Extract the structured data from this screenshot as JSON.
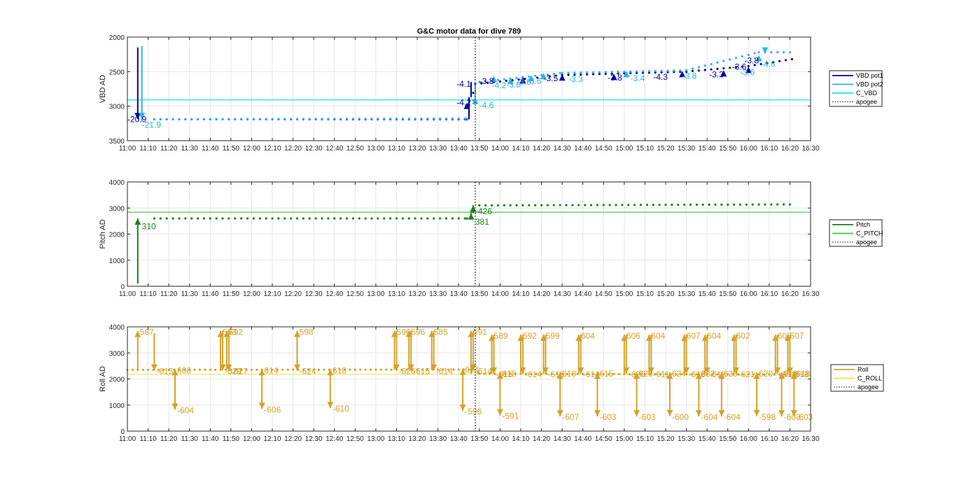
{
  "title": "G&C motor data for dive 789",
  "colors": {
    "vbd_pot1": "#0000a0",
    "vbd_pot2": "#2bb3e6",
    "c_vbd": "#19e6e6",
    "pitch": "#1e7f1e",
    "c_pitch": "#33cc33",
    "roll": "#d4a22a",
    "c_roll": "#e6e64d",
    "apogee": "#404040",
    "grid": "#e6e6e6"
  },
  "legends": [
    [
      "VBD pot1",
      "VBD pot2",
      "C_VBD",
      "apogee"
    ],
    [
      "Pitch",
      "C_PITCH",
      "apogee"
    ],
    [
      "Roll",
      "C_ROLL",
      "apogee"
    ]
  ],
  "chart_data": [
    {
      "type": "line",
      "title": "G&C motor data for dive 789",
      "xlabel": "",
      "ylabel": "VBD AD",
      "x_ticks": [
        "11:00",
        "11:10",
        "11:20",
        "11:30",
        "11:40",
        "11:50",
        "12:00",
        "12:10",
        "12:20",
        "12:30",
        "12:40",
        "12:50",
        "13:00",
        "13:10",
        "13:20",
        "13:30",
        "13:40",
        "13:50",
        "14:00",
        "14:10",
        "14:20",
        "14:30",
        "14:40",
        "14:50",
        "15:00",
        "15:10",
        "15:20",
        "15:30",
        "15:40",
        "15:50",
        "16:00",
        "16:10",
        "16:20",
        "16:30"
      ],
      "xlim": [
        "11:00",
        "16:30"
      ],
      "y_ticks": [
        "2000",
        "2500",
        "3000",
        "3500"
      ],
      "ylim": [
        3500,
        2000
      ],
      "y_reversed": true,
      "grid": true,
      "legend": "outside-right",
      "apogee": "13:48",
      "horizontal_lines": [
        {
          "name": "C_VBD",
          "value": 2910
        }
      ],
      "series": [
        {
          "name": "VBD pot1",
          "segments": [
            [
              "11:05",
              2150,
              "11:05",
              3190
            ],
            [
              "13:45",
              3190,
              "13:45",
              2870
            ],
            [
              "13:46",
              2870,
              "13:46",
              2650
            ]
          ],
          "drift": [
            [
              "11:13",
              3190
            ],
            [
              "13:44",
              3190
            ],
            [
              "13:48",
              2680
            ],
            [
              "14:30",
              2550
            ],
            [
              "15:30",
              2500
            ],
            [
              "16:00",
              2420
            ],
            [
              "16:23",
              2310
            ]
          ]
        },
        {
          "name": "VBD pot2",
          "segments": [
            [
              "11:07",
              2130,
              "11:07",
              3220
            ],
            [
              "13:48",
              2900,
              "13:48",
              2680
            ]
          ],
          "drift": [
            [
              "11:13",
              3190
            ],
            [
              "13:44",
              3180
            ],
            [
              "13:50",
              2650
            ],
            [
              "14:30",
              2520
            ],
            [
              "15:30",
              2480
            ],
            [
              "16:05",
              2220
            ],
            [
              "16:23",
              2220
            ]
          ]
        }
      ],
      "labels": [
        {
          "x": "11:00",
          "y": 3190,
          "text": "-20.9",
          "series": "VBD pot1"
        },
        {
          "x": "11:07",
          "y": 3270,
          "text": "-21.9",
          "series": "VBD pot2"
        },
        {
          "x": "13:39",
          "y": 2680,
          "text": "-4.1",
          "series": "VBD pot1"
        },
        {
          "x": "13:39",
          "y": 2950,
          "text": "-4.2",
          "series": "VBD pot1"
        },
        {
          "x": "13:50",
          "y": 2990,
          "text": "-4.6",
          "series": "VBD pot2"
        },
        {
          "x": "13:50",
          "y": 2640,
          "text": "-3.8",
          "series": "VBD pot1"
        },
        {
          "x": "13:56",
          "y": 2700,
          "text": "-4.2",
          "series": "VBD pot2"
        },
        {
          "x": "14:03",
          "y": 2690,
          "text": "-3.8",
          "series": "VBD pot2"
        },
        {
          "x": "14:08",
          "y": 2650,
          "text": "-3.6",
          "series": "VBD pot2"
        },
        {
          "x": "14:13",
          "y": 2640,
          "text": "-3.6",
          "series": "VBD pot2"
        },
        {
          "x": "14:21",
          "y": 2600,
          "text": "-3.5",
          "series": "VBD pot1"
        },
        {
          "x": "14:33",
          "y": 2610,
          "text": "-3.3",
          "series": "VBD pot2"
        },
        {
          "x": "14:52",
          "y": 2590,
          "text": "-3.8",
          "series": "VBD pot1"
        },
        {
          "x": "15:03",
          "y": 2600,
          "text": "-3.4",
          "series": "VBD pot2"
        },
        {
          "x": "15:14",
          "y": 2580,
          "text": "-4.3",
          "series": "VBD pot1"
        },
        {
          "x": "15:28",
          "y": 2560,
          "text": "-3.8",
          "series": "VBD pot2"
        },
        {
          "x": "15:41",
          "y": 2540,
          "text": "-3.3",
          "series": "VBD pot1"
        },
        {
          "x": "15:56",
          "y": 2510,
          "text": "-3.6",
          "series": "VBD pot2"
        },
        {
          "x": "15:52",
          "y": 2430,
          "text": "-3.6",
          "series": "VBD pot1"
        },
        {
          "x": "15:58",
          "y": 2340,
          "text": "-3.8",
          "series": "VBD pot1"
        },
        {
          "x": "16:06",
          "y": 2390,
          "text": "-4.6",
          "series": "VBD pot2"
        }
      ],
      "markers": [
        {
          "x": "13:44",
          "y": 2950,
          "series": "VBD pot1",
          "dir": "up"
        },
        {
          "x": "13:48",
          "y": 2880,
          "series": "VBD pot2",
          "dir": "up"
        },
        {
          "x": "13:57",
          "y": 2560,
          "series": "VBD pot2",
          "dir": "up"
        },
        {
          "x": "14:05",
          "y": 2590,
          "series": "VBD pot2",
          "dir": "up"
        },
        {
          "x": "14:11",
          "y": 2580,
          "series": "VBD pot1",
          "dir": "up"
        },
        {
          "x": "14:15",
          "y": 2550,
          "series": "VBD pot2",
          "dir": "up"
        },
        {
          "x": "14:21",
          "y": 2520,
          "series": "VBD pot2",
          "dir": "up"
        },
        {
          "x": "14:30",
          "y": 2540,
          "series": "VBD pot1",
          "dir": "up"
        },
        {
          "x": "14:55",
          "y": 2530,
          "series": "VBD pot1",
          "dir": "up"
        },
        {
          "x": "15:01",
          "y": 2490,
          "series": "VBD pot2",
          "dir": "up"
        },
        {
          "x": "15:28",
          "y": 2490,
          "series": "VBD pot1",
          "dir": "up"
        },
        {
          "x": "15:48",
          "y": 2480,
          "series": "VBD pot1",
          "dir": "up"
        },
        {
          "x": "16:00",
          "y": 2430,
          "series": "VBD pot1",
          "dir": "up"
        },
        {
          "x": "16:05",
          "y": 2260,
          "series": "VBD pot2",
          "dir": "up"
        },
        {
          "x": "11:05",
          "y": 3190,
          "series": "VBD pot1",
          "dir": "down"
        },
        {
          "x": "11:07",
          "y": 3190,
          "series": "VBD pot2",
          "dir": "down"
        },
        {
          "x": "16:08",
          "y": 2240,
          "series": "VBD pot2",
          "dir": "down"
        }
      ]
    },
    {
      "type": "line",
      "xlabel": "",
      "ylabel": "Pitch AD",
      "x_ticks": [
        "11:00",
        "11:10",
        "11:20",
        "11:30",
        "11:40",
        "11:50",
        "12:00",
        "12:10",
        "12:20",
        "12:30",
        "12:40",
        "12:50",
        "13:00",
        "13:10",
        "13:20",
        "13:30",
        "13:40",
        "13:50",
        "14:00",
        "14:10",
        "14:20",
        "14:30",
        "14:40",
        "14:50",
        "15:00",
        "15:10",
        "15:20",
        "15:30",
        "15:40",
        "15:50",
        "16:00",
        "16:10",
        "16:20",
        "16:30"
      ],
      "xlim": [
        "11:00",
        "16:30"
      ],
      "y_ticks": [
        "0",
        "1000",
        "2000",
        "3000",
        "4000"
      ],
      "ylim": [
        0,
        4000
      ],
      "grid": true,
      "legend": "outside-right",
      "apogee": "13:48",
      "horizontal_lines": [
        {
          "name": "C_PITCH",
          "value": 2840
        }
      ],
      "series": [
        {
          "name": "Pitch",
          "segments": [
            [
              "11:05",
              100,
              "11:05",
              2600
            ],
            [
              "13:46",
              2600,
              "13:46",
              2830
            ],
            [
              "13:47",
              2800,
              "13:47",
              3110
            ]
          ],
          "drift": [
            [
              "11:13",
              2600
            ],
            [
              "13:44",
              2600
            ],
            [
              "13:50",
              3100
            ],
            [
              "16:23",
              3140
            ]
          ]
        }
      ],
      "labels": [
        {
          "x": "11:07",
          "y": 2300,
          "text": "310",
          "series": "Pitch"
        },
        {
          "x": "13:48",
          "y": 2870,
          "text": "-426",
          "series": "Pitch"
        },
        {
          "x": "13:48",
          "y": 2470,
          "text": "381",
          "series": "Pitch"
        }
      ],
      "markers": [
        {
          "x": "11:05",
          "y": 2600,
          "series": "Pitch",
          "dir": "up"
        },
        {
          "x": "13:46",
          "y": 2800,
          "series": "Pitch",
          "dir": "up"
        },
        {
          "x": "13:47",
          "y": 3100,
          "series": "Pitch",
          "dir": "up"
        }
      ]
    },
    {
      "type": "line",
      "xlabel": "",
      "ylabel": "Roll AD",
      "x_ticks": [
        "11:00",
        "11:10",
        "11:20",
        "11:30",
        "11:40",
        "11:50",
        "12:00",
        "12:10",
        "12:20",
        "12:30",
        "12:40",
        "12:50",
        "13:00",
        "13:10",
        "13:20",
        "13:30",
        "13:40",
        "13:50",
        "14:00",
        "14:10",
        "14:20",
        "14:30",
        "14:40",
        "14:50",
        "15:00",
        "15:10",
        "15:20",
        "15:30",
        "15:40",
        "15:50",
        "16:00",
        "16:10",
        "16:20",
        "16:30"
      ],
      "xlim": [
        "11:00",
        "16:30"
      ],
      "y_ticks": [
        "0",
        "1000",
        "2000",
        "3000",
        "4000"
      ],
      "ylim": [
        0,
        4000
      ],
      "grid": true,
      "legend": "outside-right",
      "apogee": "13:48",
      "horizontal_lines": [
        {
          "name": "C_ROLL",
          "value": 2180
        }
      ],
      "series": [
        {
          "name": "Roll",
          "segments": [],
          "drift": [
            [
              "11:00",
              2350
            ],
            [
              "13:47",
              2360
            ],
            [
              "13:50",
              2200
            ],
            [
              "16:23",
              2170
            ]
          ]
        }
      ],
      "roll_moves": [
        {
          "t": "11:05",
          "from": 2350,
          "to": 3850,
          "label": "587"
        },
        {
          "t": "11:13",
          "from": 3750,
          "to": 2320,
          "label": "-615"
        },
        {
          "t": "11:23",
          "from": 2320,
          "to": 2380,
          "label": "608"
        },
        {
          "t": "11:23",
          "from": 2380,
          "to": 820,
          "label": "-604"
        },
        {
          "t": "11:45",
          "from": 2350,
          "to": 3850,
          "label": "593"
        },
        {
          "t": "11:46",
          "from": 3850,
          "to": 2320,
          "label": "-629"
        },
        {
          "t": "11:48",
          "from": 2350,
          "to": 3850,
          "label": "592"
        },
        {
          "t": "11:49",
          "from": 3850,
          "to": 2320,
          "label": "-627"
        },
        {
          "t": "12:05",
          "from": 2350,
          "to": 2380,
          "label": "614"
        },
        {
          "t": "12:05",
          "from": 2380,
          "to": 850,
          "label": "-606"
        },
        {
          "t": "12:22",
          "from": 2350,
          "to": 3850,
          "label": "598"
        },
        {
          "t": "12:22",
          "from": 3850,
          "to": 2320,
          "label": "-624"
        },
        {
          "t": "12:38",
          "from": 2350,
          "to": 2380,
          "label": "618"
        },
        {
          "t": "12:38",
          "from": 2380,
          "to": 880,
          "label": "-610"
        },
        {
          "t": "13:09",
          "from": 2350,
          "to": 3850,
          "label": "596"
        },
        {
          "t": "13:10",
          "from": 3850,
          "to": 2320,
          "label": "-626"
        },
        {
          "t": "13:16",
          "from": 2350,
          "to": 3850,
          "label": "596"
        },
        {
          "t": "13:17",
          "from": 3850,
          "to": 2320,
          "label": "-615"
        },
        {
          "t": "13:27",
          "from": 2350,
          "to": 3850,
          "label": "585"
        },
        {
          "t": "13:28",
          "from": 3850,
          "to": 2320,
          "label": "-614"
        },
        {
          "t": "13:42",
          "from": 2350,
          "to": 2400,
          "label": "614"
        },
        {
          "t": "13:42",
          "from": 2400,
          "to": 780,
          "label": "-596"
        },
        {
          "t": "13:46",
          "from": 2200,
          "to": 3850,
          "label": "591"
        },
        {
          "t": "13:47",
          "from": 3850,
          "to": 2320,
          "label": "-614"
        },
        {
          "t": "13:56",
          "from": 2200,
          "to": 3700,
          "label": "589"
        },
        {
          "t": "13:57",
          "from": 3700,
          "to": 2200,
          "label": "-615"
        },
        {
          "t": "14:00",
          "from": 2200,
          "to": 2250,
          "label": "618"
        },
        {
          "t": "14:00",
          "from": 2250,
          "to": 600,
          "label": "-591"
        },
        {
          "t": "14:10",
          "from": 2200,
          "to": 3700,
          "label": "592"
        },
        {
          "t": "14:11",
          "from": 3700,
          "to": 2200,
          "label": "-614"
        },
        {
          "t": "14:21",
          "from": 2200,
          "to": 3700,
          "label": "599"
        },
        {
          "t": "14:22",
          "from": 3700,
          "to": 2200,
          "label": "-615"
        },
        {
          "t": "14:29",
          "from": 2200,
          "to": 2250,
          "label": "618"
        },
        {
          "t": "14:29",
          "from": 2250,
          "to": 560,
          "label": "-607"
        },
        {
          "t": "14:38",
          "from": 2200,
          "to": 3700,
          "label": "604"
        },
        {
          "t": "14:39",
          "from": 3700,
          "to": 2200,
          "label": "-614"
        },
        {
          "t": "14:47",
          "from": 2200,
          "to": 2250,
          "label": "615"
        },
        {
          "t": "14:47",
          "from": 2250,
          "to": 560,
          "label": "-603"
        },
        {
          "t": "15:00",
          "from": 2200,
          "to": 3700,
          "label": "606"
        },
        {
          "t": "15:01",
          "from": 3700,
          "to": 2200,
          "label": "-620"
        },
        {
          "t": "15:06",
          "from": 2200,
          "to": 2250,
          "label": "620"
        },
        {
          "t": "15:06",
          "from": 2250,
          "to": 560,
          "label": "-603"
        },
        {
          "t": "15:12",
          "from": 2200,
          "to": 3700,
          "label": "604"
        },
        {
          "t": "15:13",
          "from": 3700,
          "to": 2200,
          "label": "-611"
        },
        {
          "t": "15:22",
          "from": 2200,
          "to": 2250,
          "label": "624"
        },
        {
          "t": "15:22",
          "from": 2250,
          "to": 570,
          "label": "-600"
        },
        {
          "t": "15:29",
          "from": 2200,
          "to": 3700,
          "label": "607"
        },
        {
          "t": "15:30",
          "from": 3700,
          "to": 2200,
          "label": "-613"
        },
        {
          "t": "15:36",
          "from": 2200,
          "to": 2250,
          "label": "622"
        },
        {
          "t": "15:36",
          "from": 2250,
          "to": 560,
          "label": "-604"
        },
        {
          "t": "15:39",
          "from": 2200,
          "to": 3700,
          "label": "604"
        },
        {
          "t": "15:40",
          "from": 3700,
          "to": 2200,
          "label": "-613"
        },
        {
          "t": "15:47",
          "from": 2200,
          "to": 2250,
          "label": "620"
        },
        {
          "t": "15:47",
          "from": 2250,
          "to": 560,
          "label": "-604"
        },
        {
          "t": "15:53",
          "from": 2200,
          "to": 3700,
          "label": "602"
        },
        {
          "t": "15:54",
          "from": 3700,
          "to": 2200,
          "label": "-621"
        },
        {
          "t": "16:04",
          "from": 2200,
          "to": 2250,
          "label": "620"
        },
        {
          "t": "16:04",
          "from": 2250,
          "to": 570,
          "label": "-598"
        },
        {
          "t": "16:13",
          "from": 2200,
          "to": 3700,
          "label": "605"
        },
        {
          "t": "16:14",
          "from": 3700,
          "to": 2200,
          "label": "-618"
        },
        {
          "t": "16:16",
          "from": 2200,
          "to": 2250,
          "label": "618"
        },
        {
          "t": "16:16",
          "from": 2250,
          "to": 560,
          "label": "-603"
        },
        {
          "t": "16:19",
          "from": 2200,
          "to": 3700,
          "label": "607"
        },
        {
          "t": "16:20",
          "from": 3700,
          "to": 2200,
          "label": "-618"
        },
        {
          "t": "16:22",
          "from": 2200,
          "to": 2250,
          "label": "618"
        },
        {
          "t": "16:22",
          "from": 2250,
          "to": 560,
          "label": "-603"
        }
      ]
    }
  ]
}
